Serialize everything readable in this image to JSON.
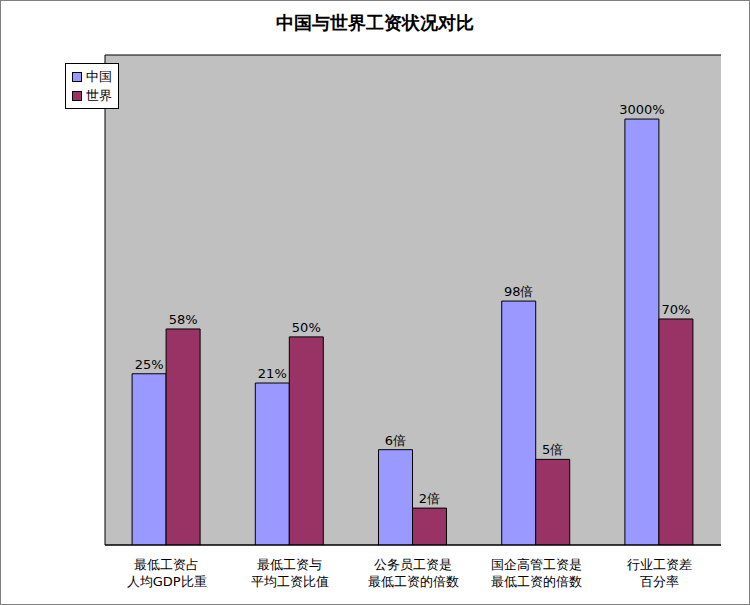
{
  "chart_data": {
    "type": "bar",
    "title": "中国与世界工资状况对比",
    "categories": [
      "最低工资占\n人均GDP比重",
      "最低工资与\n平均工资比值",
      "公务员工资是\n最低工资的倍数",
      "国企高管工资是\n最低工资的倍数",
      "行业工资差\n百分率"
    ],
    "series": [
      {
        "name": "中国",
        "color": "#9999ff",
        "values": [
          25,
          21,
          6,
          98,
          3000
        ],
        "value_labels": [
          "25%",
          "21%",
          "6倍",
          "98倍",
          "3000%"
        ]
      },
      {
        "name": "世界",
        "color": "#993366",
        "values": [
          58,
          50,
          2,
          5,
          70
        ],
        "value_labels": [
          "58%",
          "50%",
          "2倍",
          "5倍",
          "70%"
        ]
      }
    ],
    "log": "y",
    "ylim": [
      1,
      10000
    ],
    "yticks": [
      1,
      10,
      100,
      1000,
      10000
    ],
    "grid": true,
    "legend": "top-left",
    "data_labels": true,
    "tick_labels": "x"
  }
}
